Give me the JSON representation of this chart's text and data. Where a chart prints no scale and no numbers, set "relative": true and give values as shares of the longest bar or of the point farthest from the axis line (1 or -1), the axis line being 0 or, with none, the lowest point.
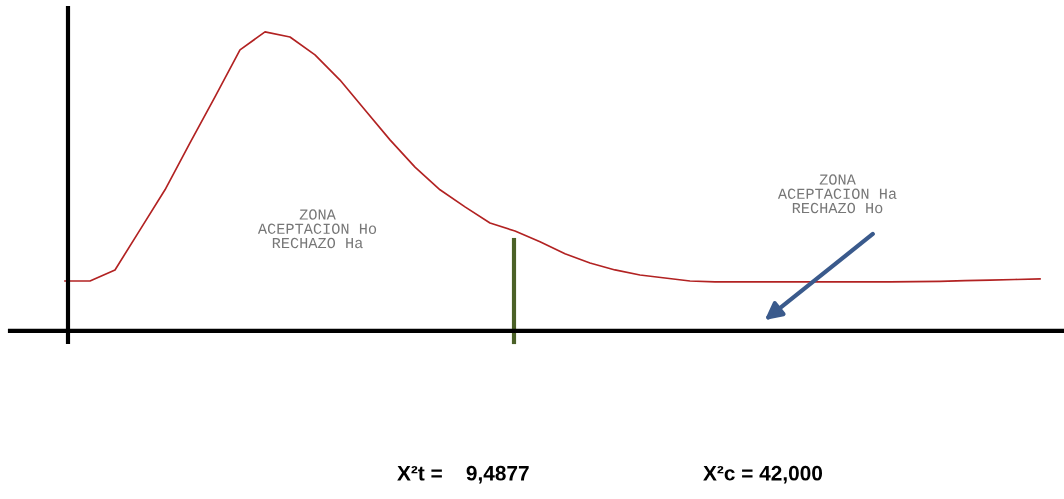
{
  "chart_data": {
    "type": "line",
    "relative": true,
    "categories": [
      null,
      null,
      null,
      null,
      null,
      null,
      null,
      null,
      null,
      null,
      null,
      null,
      null,
      null,
      null,
      null,
      null,
      null,
      null,
      null,
      null,
      null,
      null,
      null,
      null,
      null,
      null,
      null,
      null,
      null,
      null,
      null,
      null,
      null,
      null,
      null,
      null,
      null,
      null,
      null
    ],
    "series": [
      {
        "color": "#b22222",
        "values": [
          0.167,
          0.167,
          0.204,
          0.338,
          0.472,
          0.629,
          0.783,
          0.94,
          1.0,
          0.983,
          0.923,
          0.839,
          0.739,
          0.639,
          0.548,
          0.472,
          0.415,
          0.361,
          0.334,
          0.298,
          0.258,
          0.227,
          0.204,
          0.187,
          0.177,
          0.167,
          0.164,
          0.164,
          0.164,
          0.164,
          0.164,
          0.164,
          0.164,
          0.164,
          0.165,
          0.166,
          0.168,
          0.17,
          0.172,
          0.174
        ]
      }
    ],
    "annotations": [
      "ZONA\nACEPTACION Ho\nRECHAZO Ha",
      "ZONA\nACEPTACION Ha\nRECHAZO Ho",
      "X²t =    9,4877",
      "X²c = 42,000"
    ],
    "legend": false,
    "marker": "none",
    "line_style": "solid"
  }
}
